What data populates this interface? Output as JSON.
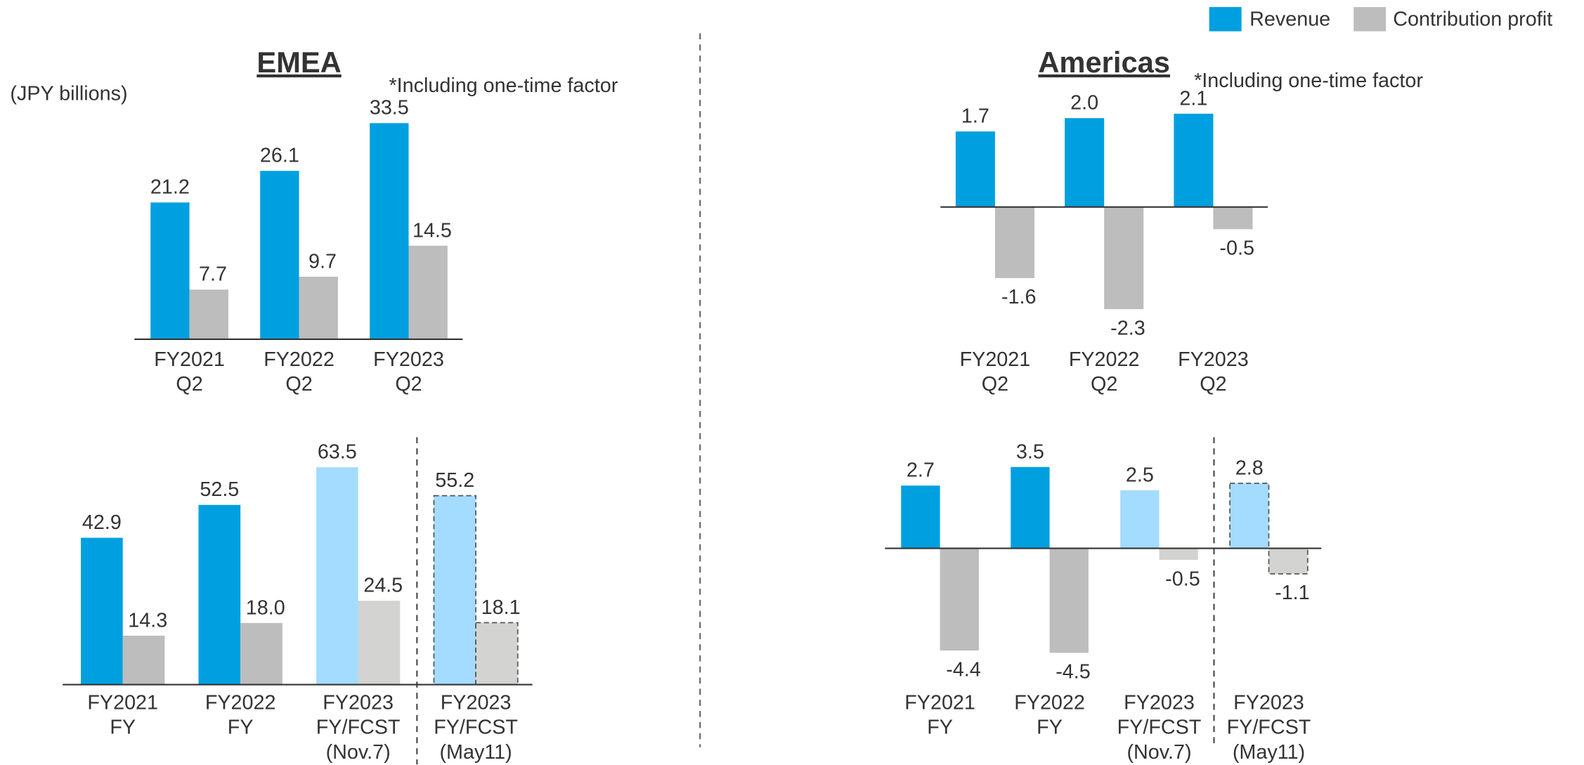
{
  "chart_data": [
    {
      "type": "bar",
      "title": "EMEA",
      "annotation": "*Including one-time factor",
      "unit_label": "(JPY billions)",
      "categories": [
        [
          "FY2021",
          "Q2"
        ],
        [
          "FY2022",
          "Q2"
        ],
        [
          "FY2023",
          "Q2"
        ]
      ],
      "dashed": [
        false,
        false,
        false
      ],
      "series": [
        {
          "name": "Revenue",
          "color": "#00a0e0",
          "colors": [
            "#00a0e0",
            "#00a0e0",
            "#00a0e0"
          ],
          "values": [
            21.2,
            26.1,
            33.5
          ],
          "value_labels": [
            "21.2",
            "26.1",
            "33.5"
          ]
        },
        {
          "name": "Contribution profit",
          "color": "#bdbdbd",
          "colors": [
            "#bdbdbd",
            "#bdbdbd",
            "#bdbdbd"
          ],
          "values": [
            7.7,
            9.7,
            14.5
          ],
          "value_labels": [
            "7.7",
            "9.7",
            "14.5"
          ]
        }
      ]
    },
    {
      "type": "bar",
      "categories": [
        [
          "FY2021",
          "FY"
        ],
        [
          "FY2022",
          "FY"
        ],
        [
          "FY2023",
          "FY/FCST",
          "(Nov.7)"
        ],
        [
          "FY2023",
          "FY/FCST",
          "(May11)"
        ]
      ],
      "dashed": [
        false,
        false,
        false,
        true
      ],
      "series": [
        {
          "colors": [
            "#00a0e0",
            "#00a0e0",
            "#a3dcff",
            "#a3dcff"
          ],
          "values": [
            42.9,
            52.5,
            63.5,
            55.2
          ],
          "value_labels": [
            "42.9",
            "52.5",
            "63.5",
            "55.2"
          ]
        },
        {
          "colors": [
            "#bdbdbd",
            "#bdbdbd",
            "#d3d3d1",
            "#d3d3d1"
          ],
          "values": [
            14.3,
            18,
            24.5,
            18.1
          ],
          "value_labels": [
            "14.3",
            "18.0",
            "24.5",
            "18.1"
          ]
        }
      ]
    },
    {
      "type": "bar",
      "title": "Americas",
      "annotation": "*Including one-time factor",
      "categories": [
        [
          "FY2021",
          "Q2"
        ],
        [
          "FY2022",
          "Q2"
        ],
        [
          "FY2023",
          "Q2"
        ]
      ],
      "dashed": [
        false,
        false,
        false
      ],
      "series": [
        {
          "colors": [
            "#00a0e0",
            "#00a0e0",
            "#00a0e0"
          ],
          "values": [
            1.7,
            2,
            2.1
          ],
          "value_labels": [
            "1.7",
            "2.0",
            "2.1"
          ]
        },
        {
          "colors": [
            "#bdbdbd",
            "#bdbdbd",
            "#bdbdbd"
          ],
          "values": [
            -1.6,
            -2.3,
            -0.5
          ],
          "value_labels": [
            "-1.6",
            "-2.3",
            "-0.5"
          ]
        }
      ]
    },
    {
      "type": "bar",
      "categories": [
        [
          "FY2021",
          "FY"
        ],
        [
          "FY2022",
          "FY"
        ],
        [
          "FY2023",
          "FY/FCST",
          "(Nov.7)"
        ],
        [
          "FY2023",
          "FY/FCST",
          "(May11)"
        ]
      ],
      "dashed": [
        false,
        false,
        false,
        true
      ],
      "series": [
        {
          "colors": [
            "#00a0e0",
            "#00a0e0",
            "#a3dcff",
            "#a3dcff"
          ],
          "values": [
            2.7,
            3.5,
            2.5,
            2.8
          ],
          "value_labels": [
            "2.7",
            "3.5",
            "2.5",
            "2.8"
          ]
        },
        {
          "colors": [
            "#bdbdbd",
            "#bdbdbd",
            "#d3d3d1",
            "#d3d3d1"
          ],
          "values": [
            -4.4,
            -4.5,
            -0.5,
            -1.1
          ],
          "value_labels": [
            "-4.4",
            "-4.5",
            "-0.5",
            "-1.1"
          ]
        }
      ]
    }
  ]
}
